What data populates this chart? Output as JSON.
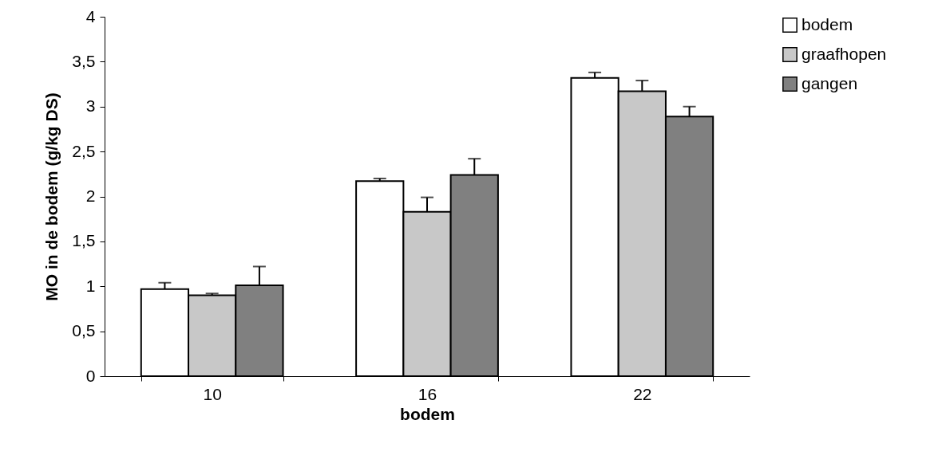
{
  "chart_data": {
    "type": "bar",
    "xlabel": "bodem",
    "ylabel": "MO in de bodem (g/kg DS)",
    "categories": [
      "10",
      "16",
      "22"
    ],
    "series": [
      {
        "name": "bodem",
        "color": "#ffffff",
        "values": [
          0.97,
          2.17,
          3.32
        ],
        "errors": [
          [
            0.97,
            1.04
          ],
          [
            2.17,
            2.2
          ],
          [
            3.32,
            3.38
          ]
        ]
      },
      {
        "name": "graafhopen",
        "color": "#c8c8c8",
        "values": [
          0.9,
          1.83,
          3.17
        ],
        "errors": [
          [
            0.9,
            0.92
          ],
          [
            1.83,
            1.99
          ],
          [
            3.17,
            3.29
          ]
        ]
      },
      {
        "name": "gangen",
        "color": "#808080",
        "values": [
          1.01,
          2.24,
          2.89
        ],
        "errors": [
          [
            1.01,
            1.22
          ],
          [
            2.24,
            2.42
          ],
          [
            2.89,
            3.0
          ]
        ]
      }
    ],
    "ylim": [
      0,
      4
    ],
    "yticks": [
      0,
      {
        "value": 0.5,
        "label": "0,5"
      },
      1,
      {
        "value": 1.5,
        "label": "1,5"
      },
      2,
      {
        "value": 2.5,
        "label": "2,5"
      },
      3,
      {
        "value": 3.5,
        "label": "3,5"
      },
      4
    ],
    "grid": false,
    "legend": "top right"
  }
}
